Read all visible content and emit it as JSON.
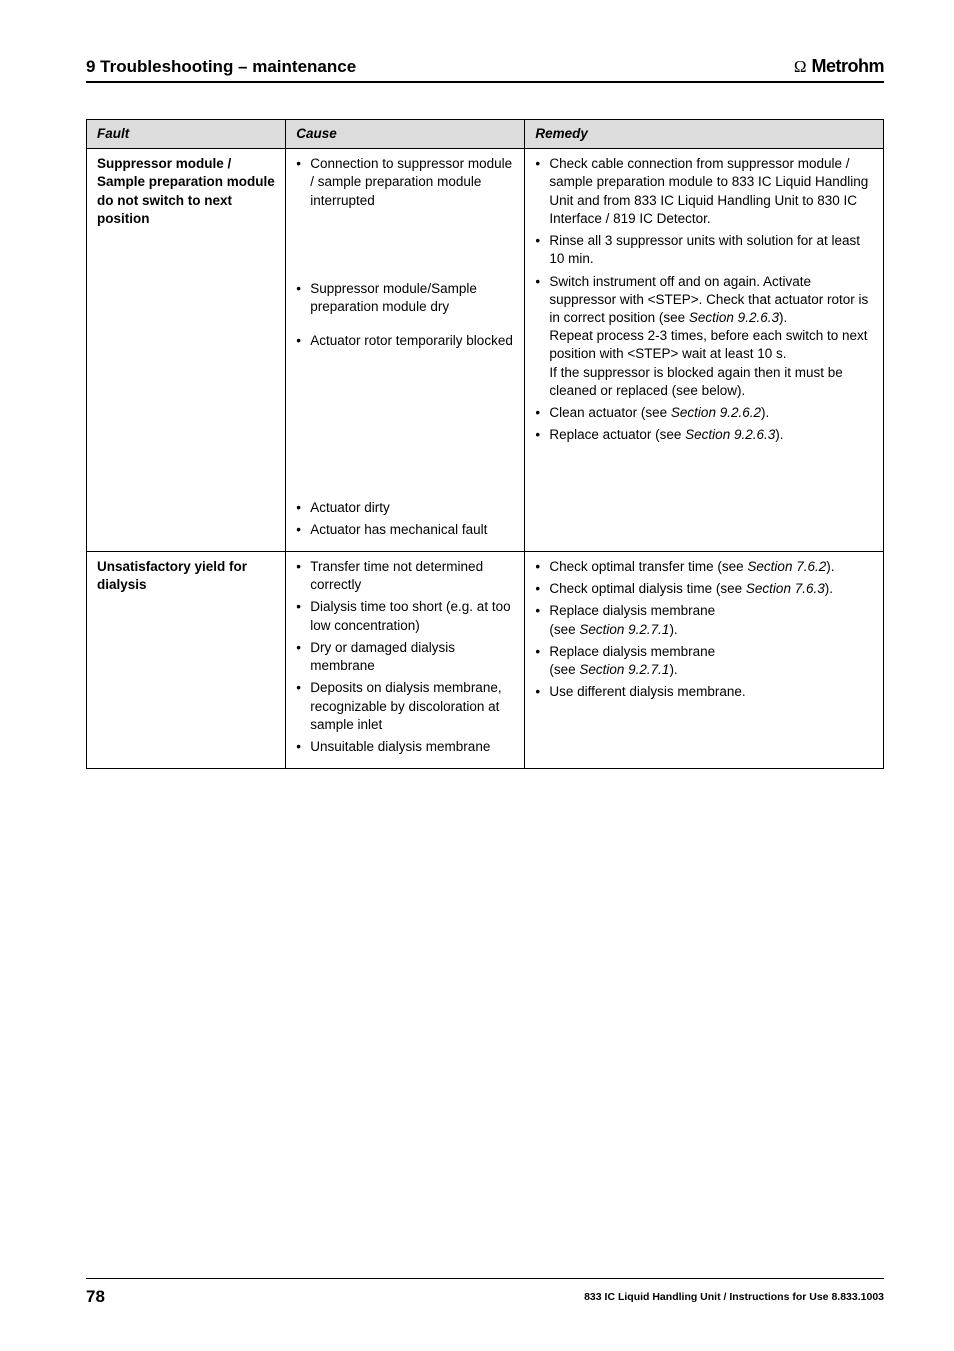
{
  "header": {
    "section": "9  Troubleshooting – maintenance",
    "brand": "Metrohm"
  },
  "table": {
    "headers": {
      "c1": "Fault",
      "c2": "Cause",
      "c3": "Remedy"
    },
    "rows": [
      {
        "fault_html": "Suppressor module / Sample preparation module do not switch to next position",
        "causes": [
          "Connection to suppressor module / sample preparation module interrupted",
          "Suppressor module/Sample preparation module dry",
          "Actuator rotor temporarily blocked",
          "Actuator dirty",
          "Actuator has mechanical fault"
        ],
        "remedies": [
          "Check cable connection from suppressor module / sample preparation module to 833 IC Liquid Handling Unit and from 833 IC Liquid Handling Unit to 830 IC Interface / 819 IC Detector.",
          "Rinse all 3 suppressor units with solution for at least 10 min.",
          "Switch instrument off and on again. Activate suppressor with <STEP>. Check that actuator rotor is in correct position (see <i>Section 9.2.6.3</i>).<br>Repeat process 2-3 times, before each switch to next position with <STEP> wait at least 10 s.<br>If the suppressor is blocked again then it must be cleaned or replaced (see below).",
          "Clean actuator (see <i>Section 9.2.6.2</i>).",
          "Replace actuator (see <i>Section 9.2.6.3</i>)."
        ]
      },
      {
        "fault_html": "Unsatisfactory yield for dialysis",
        "causes": [
          "Transfer time not determined correctly",
          "Dialysis time too short (e.g. at too low concentration)",
          "Dry or damaged dialysis membrane",
          "Deposits on dialysis membrane, recognizable by discoloration at sample inlet",
          "Unsuitable dialysis membrane"
        ],
        "remedies": [
          "Check optimal transfer time (see <i>Section 7.6.2</i>).",
          "Check optimal dialysis time (see <i>Section 7.6.3</i>).",
          "Replace dialysis membrane<br>(see <i>Section 9.2.7.1</i>).",
          "Replace dialysis membrane<br>(see <i>Section 9.2.7.1</i>).",
          "Use different dialysis membrane."
        ]
      }
    ]
  },
  "footer": {
    "page": "78",
    "text": "833 IC Liquid Handling Unit / Instructions for Use 8.833.1003"
  }
}
